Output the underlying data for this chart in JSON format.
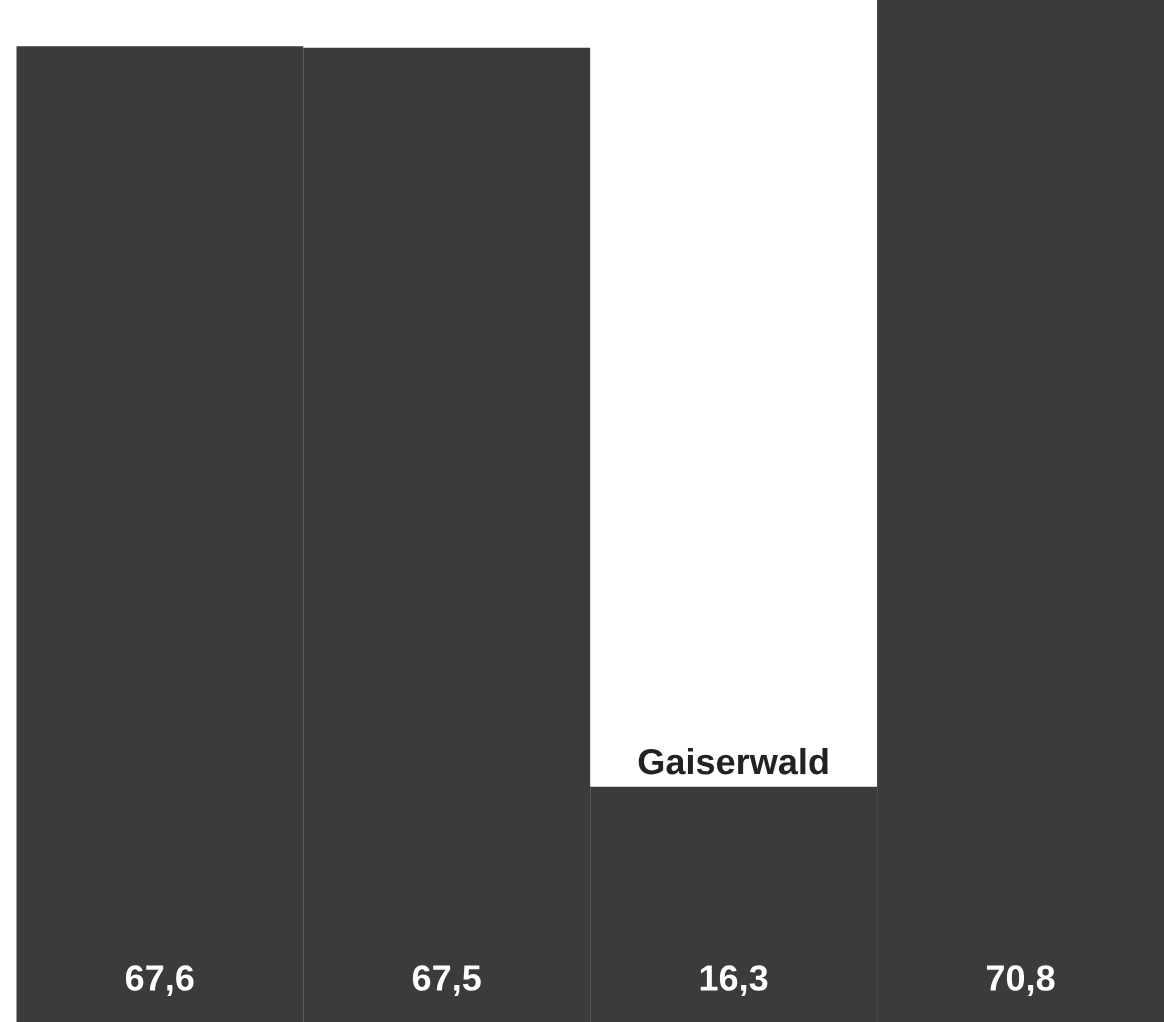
{
  "chart_data": {
    "type": "bar",
    "categories": [
      null,
      null,
      "Gaiserwald",
      null
    ],
    "values": [
      67.6,
      67.5,
      16.3,
      70.8
    ],
    "value_labels": [
      "67,6",
      "67,5",
      "16,3",
      "70,8"
    ],
    "color": "#3b3b3b"
  }
}
